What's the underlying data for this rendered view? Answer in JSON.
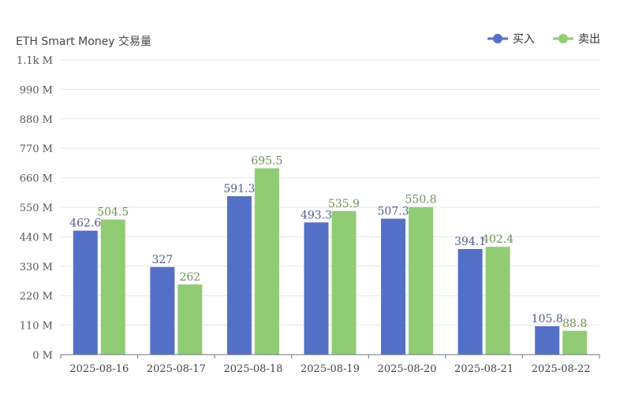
{
  "chart_data": {
    "type": "bar",
    "title": "ETH Smart Money 交易量",
    "categories": [
      "2025-08-16",
      "2025-08-17",
      "2025-08-18",
      "2025-08-19",
      "2025-08-20",
      "2025-08-21",
      "2025-08-22"
    ],
    "series": [
      {
        "name": "买入",
        "values": [
          462.6,
          327,
          591.3,
          493.3,
          507.3,
          394.1,
          105.8
        ],
        "labels": [
          "462.6",
          "327",
          "591.3",
          "493.3",
          "507.3",
          "394.1",
          "105.8"
        ],
        "color": "#5470c6",
        "label_color": "#4f5e8f"
      },
      {
        "name": "卖出",
        "values": [
          504.5,
          262,
          695.5,
          535.9,
          550.8,
          402.4,
          88.8
        ],
        "labels": [
          "504.5",
          "262",
          "695.5",
          "535.9",
          "550.8",
          "402.4",
          "88.8"
        ],
        "color": "#91cc75",
        "label_color": "#6f8f55"
      }
    ],
    "ylim": [
      0,
      1100
    ],
    "yticks": [
      0,
      110,
      220,
      330,
      440,
      550,
      660,
      770,
      880,
      990,
      1100
    ],
    "ytick_labels": [
      "0 M",
      "110 M",
      "220 M",
      "330 M",
      "440 M",
      "550 M",
      "660 M",
      "770 M",
      "880 M",
      "990 M",
      "1.1k M"
    ],
    "grid": true,
    "legend_position": "top-right"
  }
}
